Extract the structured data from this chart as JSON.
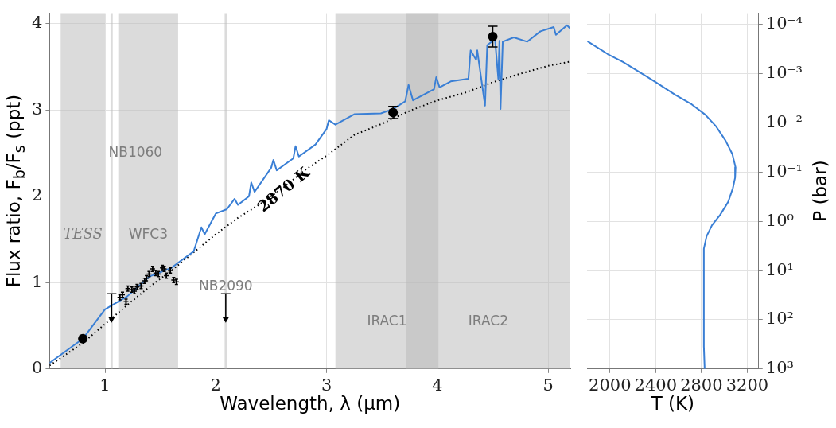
{
  "chart_data": [
    {
      "type": "line",
      "xlabel": "Wavelength, λ (μm)",
      "ylabel": "Flux ratio, F$_{b}$/F$_{s}$ (ppt)",
      "xlim": [
        0.5,
        5.2
      ],
      "ylim": [
        0,
        4.12
      ],
      "xticks": [
        1,
        2,
        3,
        4,
        5
      ],
      "yticks": [
        0,
        1,
        2,
        3,
        4
      ],
      "grid": true,
      "bands": [
        {
          "axis": "x",
          "from": 0.6,
          "to": 1.0,
          "label": "TESS",
          "color": "#b8b8b8"
        },
        {
          "axis": "x",
          "from": 1.05,
          "to": 1.07,
          "label": "NB1060",
          "color": "#b8b8b8"
        },
        {
          "axis": "x",
          "from": 1.12,
          "to": 1.66,
          "label": "WFC3",
          "color": "#b8b8b8"
        },
        {
          "axis": "x",
          "from": 2.08,
          "to": 2.1,
          "label": "NB2090",
          "color": "#b8b8b8"
        },
        {
          "axis": "x",
          "from": 3.08,
          "to": 4.01,
          "label": "IRAC1",
          "color": "#b8b8b8"
        },
        {
          "axis": "x",
          "from": 3.72,
          "to": 5.2,
          "label": "IRAC2",
          "color": "#b8b8b8"
        }
      ],
      "series": [
        {
          "type": "line",
          "color": "#3a7fd5",
          "marker": "none",
          "x": [
            0.5,
            0.8,
            1.0,
            1.2,
            1.4,
            1.6,
            1.66,
            1.8,
            1.87,
            1.9,
            2.0,
            2.1,
            2.17,
            2.2,
            2.3,
            2.32,
            2.35,
            2.5,
            2.52,
            2.55,
            2.7,
            2.72,
            2.75,
            2.9,
            3.0,
            3.02,
            3.08,
            3.25,
            3.49,
            3.6,
            3.71,
            3.74,
            3.78,
            3.97,
            3.99,
            4.02,
            4.12,
            4.28,
            4.3,
            4.35,
            4.36,
            4.43,
            4.45,
            4.52,
            4.55,
            4.56,
            4.57,
            4.59,
            4.69,
            4.81,
            4.93,
            5.05,
            5.07,
            5.17,
            5.2
          ],
          "values": [
            0.07,
            0.35,
            0.69,
            0.84,
            1.07,
            1.17,
            1.23,
            1.36,
            1.64,
            1.56,
            1.8,
            1.85,
            1.97,
            1.9,
            2.0,
            2.16,
            2.05,
            2.33,
            2.42,
            2.3,
            2.44,
            2.58,
            2.46,
            2.6,
            2.78,
            2.88,
            2.83,
            2.95,
            2.96,
            3.01,
            3.1,
            3.29,
            3.11,
            3.24,
            3.38,
            3.26,
            3.33,
            3.36,
            3.69,
            3.58,
            3.69,
            3.05,
            3.75,
            3.82,
            3.36,
            3.8,
            3.01,
            3.79,
            3.84,
            3.79,
            3.91,
            3.96,
            3.87,
            3.98,
            3.94
          ]
        },
        {
          "type": "line",
          "name": "2870 K",
          "color": "#000000",
          "marker": "none",
          "line_style": "dotted",
          "x": [
            0.5,
            0.8,
            1.0,
            1.2,
            1.4,
            1.6,
            1.8,
            2.0,
            2.2,
            2.4,
            2.6,
            2.8,
            3.0,
            3.25,
            3.5,
            3.75,
            4.0,
            4.25,
            4.5,
            4.75,
            5.0,
            5.2
          ],
          "values": [
            0.04,
            0.3,
            0.52,
            0.74,
            0.95,
            1.14,
            1.35,
            1.56,
            1.75,
            1.91,
            2.09,
            2.3,
            2.47,
            2.71,
            2.84,
            2.99,
            3.11,
            3.2,
            3.32,
            3.42,
            3.51,
            3.56
          ]
        },
        {
          "type": "scatter",
          "color": "#000000",
          "marker": "cross",
          "x": [
            1.134,
            1.158,
            1.19,
            1.206,
            1.242,
            1.266,
            1.29,
            1.326,
            1.357,
            1.374,
            1.398,
            1.43,
            1.458,
            1.482,
            1.518,
            1.535,
            1.554,
            1.59,
            1.62,
            1.645
          ],
          "values": [
            0.83,
            0.86,
            0.78,
            0.93,
            0.92,
            0.9,
            0.95,
            0.96,
            1.02,
            1.05,
            1.1,
            1.16,
            1.11,
            1.1,
            1.17,
            1.16,
            1.08,
            1.14,
            1.03,
            1.01
          ],
          "errors": [
            0.03,
            0.03,
            0.03,
            0.03,
            0.03,
            0.03,
            0.03,
            0.03,
            0.03,
            0.03,
            0.03,
            0.03,
            0.03,
            0.03,
            0.03,
            0.03,
            0.03,
            0.03,
            0.03,
            0.03
          ]
        },
        {
          "type": "scatter",
          "color": "#000000",
          "marker": "triangle",
          "x": [
            1.06,
            2.09
          ],
          "values": [
            0.58,
            0.58
          ],
          "errors": [
            [
              0.58,
              0.87
            ],
            [
              0.58,
              0.87
            ]
          ]
        },
        {
          "type": "scatter",
          "color": "#000000",
          "marker": "circle",
          "x": [
            0.8,
            3.6,
            4.5
          ],
          "values": [
            0.35,
            2.97,
            3.85
          ],
          "errors": [
            null,
            0.07,
            0.12
          ]
        }
      ]
    },
    {
      "type": "line",
      "xlabel": "T (K)",
      "ylabel": "P (bar)",
      "log": "y",
      "xlim": [
        1800,
        3300
      ],
      "ylim": [
        1000,
        5.9e-05
      ],
      "xticks": [
        2000,
        2400,
        2800,
        3200
      ],
      "yticks": [
        {
          "value": 0.0001,
          "label": "10⁻⁴"
        },
        {
          "value": 0.001,
          "label": "10⁻³"
        },
        {
          "value": 0.01,
          "label": "10⁻²"
        },
        {
          "value": 0.1,
          "label": "10⁻¹"
        },
        {
          "value": 1,
          "label": "10⁰"
        },
        {
          "value": 10,
          "label": "10¹"
        },
        {
          "value": 100,
          "label": "10²"
        },
        {
          "value": 1000,
          "label": "10³"
        }
      ],
      "grid": true,
      "series": [
        {
          "type": "line",
          "color": "#3a7fd5",
          "marker": "none",
          "x": [
            1804,
            1981,
            2111,
            2301,
            2412,
            2573,
            2715,
            2833,
            2928,
            3011,
            3070,
            3098,
            3094,
            3075,
            3034,
            2963,
            2892,
            2845,
            2821,
            2821,
            2828
          ],
          "values": [
            0.00022,
            0.0004,
            0.00057,
            0.00107,
            0.00155,
            0.0027,
            0.0042,
            0.0068,
            0.0118,
            0.023,
            0.043,
            0.08,
            0.13,
            0.21,
            0.4,
            0.74,
            1.2,
            2.0,
            3.6,
            350,
            1000
          ]
        }
      ]
    }
  ]
}
